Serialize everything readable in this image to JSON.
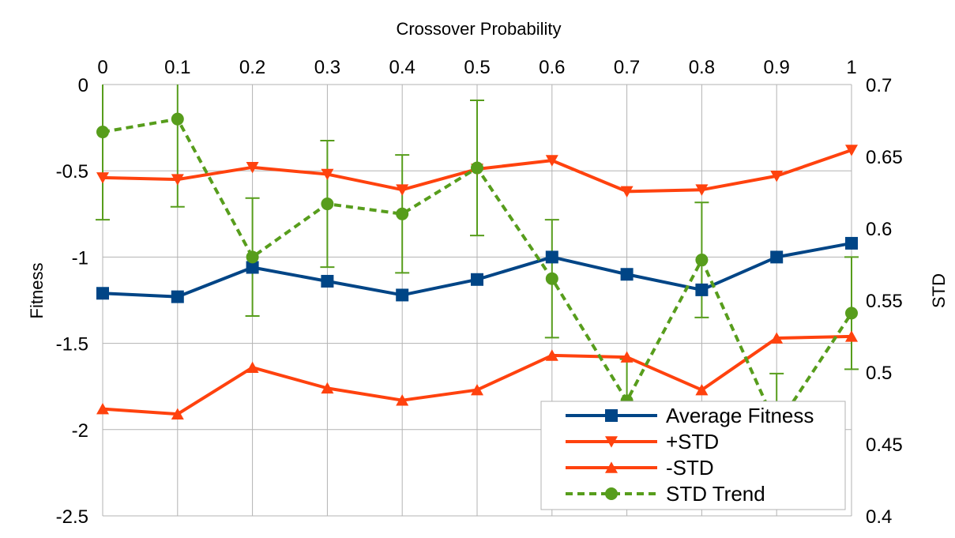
{
  "chart_data": {
    "type": "line",
    "xlabel": "Crossover Probability",
    "ylabel": "Fitness",
    "y2label": "STD",
    "x": [
      0,
      0.1,
      0.2,
      0.3,
      0.4,
      0.5,
      0.6,
      0.7,
      0.8,
      0.9,
      1
    ],
    "x_tick_labels": [
      "0",
      "0.1",
      "0.2",
      "0.3",
      "0.4",
      "0.5",
      "0.6",
      "0.7",
      "0.8",
      "0.9",
      "1"
    ],
    "xlim": [
      0,
      1
    ],
    "ylim": [
      -2.5,
      0
    ],
    "y_tick_labels": [
      "0",
      "-0.5",
      "-1",
      "-1.5",
      "-2",
      "-2.5"
    ],
    "y_ticks": [
      0,
      -0.5,
      -1,
      -1.5,
      -2,
      -2.5
    ],
    "y2lim": [
      0.4,
      0.7
    ],
    "y2_tick_labels": [
      "0.7",
      "0.65",
      "0.6",
      "0.55",
      "0.5",
      "0.45",
      "0.4"
    ],
    "y2_ticks": [
      0.7,
      0.65,
      0.6,
      0.55,
      0.5,
      0.45,
      0.4
    ],
    "grid": "vertical",
    "legend_position": "bottom-right",
    "series": [
      {
        "name": "Average Fitness",
        "axis": "left",
        "color": "#004586",
        "marker": "square",
        "line": "solid",
        "values": [
          -1.21,
          -1.23,
          -1.06,
          -1.14,
          -1.22,
          -1.13,
          -1.0,
          -1.1,
          -1.19,
          -1.0,
          -0.92
        ]
      },
      {
        "name": "+STD",
        "axis": "left",
        "color": "#ff420e",
        "marker": "triangle-down",
        "line": "solid",
        "values": [
          -0.54,
          -0.55,
          -0.48,
          -0.52,
          -0.61,
          -0.49,
          -0.44,
          -0.62,
          -0.61,
          -0.53,
          -0.38
        ]
      },
      {
        "name": "-STD",
        "axis": "left",
        "color": "#ff420e",
        "marker": "triangle-up",
        "line": "solid",
        "values": [
          -1.88,
          -1.91,
          -1.64,
          -1.76,
          -1.83,
          -1.77,
          -1.57,
          -1.58,
          -1.77,
          -1.47,
          -1.46
        ]
      },
      {
        "name": "STD Trend",
        "axis": "right",
        "color": "#579d1c",
        "marker": "circle",
        "line": "dashed",
        "values": [
          0.667,
          0.676,
          0.58,
          0.617,
          0.61,
          0.642,
          0.565,
          0.48,
          0.578,
          0.462,
          0.541
        ],
        "error": [
          0.061,
          0.061,
          0.041,
          0.044,
          0.041,
          0.047,
          0.041,
          0.029,
          0.04,
          0.037,
          0.039
        ]
      }
    ]
  }
}
